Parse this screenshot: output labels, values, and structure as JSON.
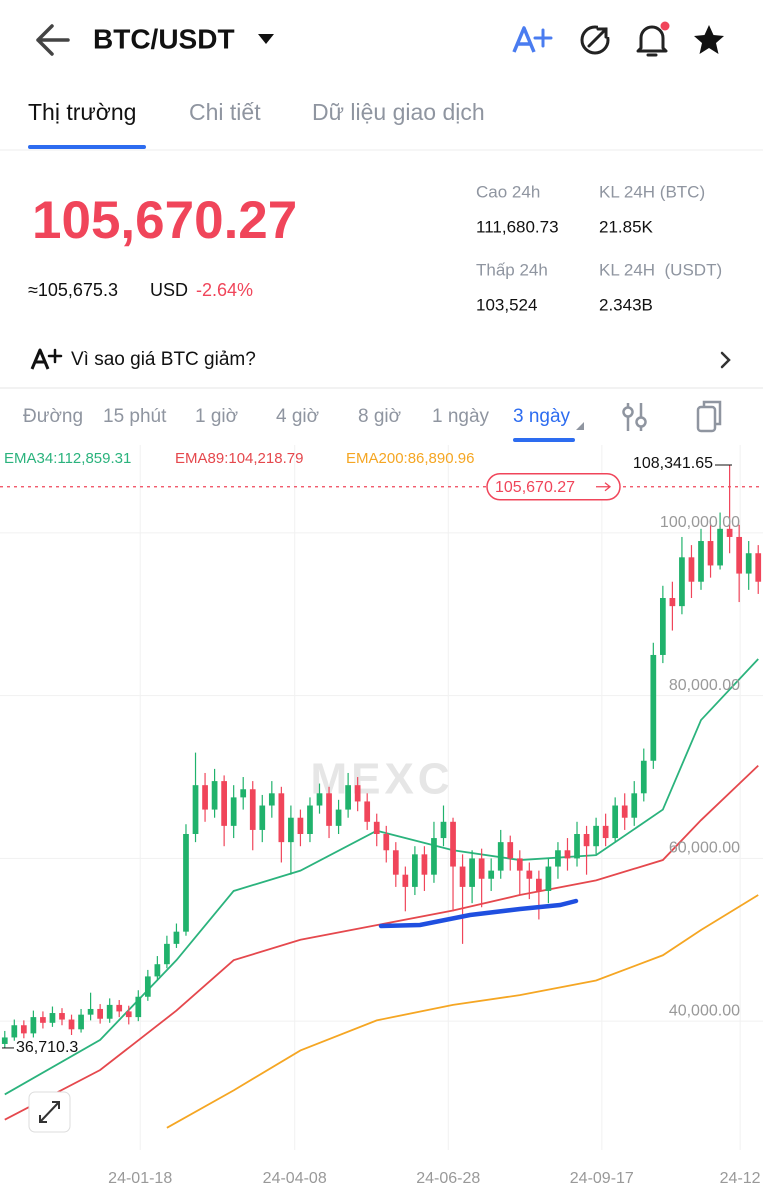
{
  "header": {
    "title": "BTC/USDT"
  },
  "tabs": [
    "Thị trường",
    "Chi tiết",
    "Dữ liệu giao dịch"
  ],
  "price": {
    "last": "105,670.27",
    "approx": "≈105,675.3",
    "currency": "USD",
    "change": "-2.64%"
  },
  "stats": [
    {
      "label": "Cao 24h",
      "value": "111,680.73"
    },
    {
      "label": "Thấp 24h",
      "value": "103,524"
    },
    {
      "label": "KL 24H (BTC)",
      "value": "21.85K"
    },
    {
      "label": "KL 24H  (USDT)",
      "value": "2.343B"
    }
  ],
  "banner": "Vì sao giá BTC giảm?",
  "timeframes": [
    "Đường",
    "15 phút",
    "1 giờ",
    "4 giờ",
    "8 giờ",
    "1 ngày",
    "3 ngày"
  ],
  "watermark": "MEXC",
  "chart_data": {
    "type": "candlestick",
    "up_color": "#20b26c",
    "down_color": "#f0455a",
    "xlim": [
      -0.5,
      79.5
    ],
    "xticks": [
      {
        "value": 14.2,
        "label": "24-01-18"
      },
      {
        "value": 30.4,
        "label": "24-04-08"
      },
      {
        "value": 46.5,
        "label": "24-06-28"
      },
      {
        "value": 62.6,
        "label": "24-09-17"
      },
      {
        "value": 77.1,
        "label": "24-12"
      }
    ],
    "ylim": [
      24170,
      110800
    ],
    "yticks": [
      {
        "value": 40000,
        "label": "40,000.00"
      },
      {
        "value": 60000,
        "label": "60,000.00"
      },
      {
        "value": 80000,
        "label": "80,000.00"
      },
      {
        "value": 100000,
        "label": "100,000.00"
      }
    ],
    "grid": true,
    "open": [
      37200,
      38000,
      39500,
      38500,
      40500,
      39800,
      41000,
      40200,
      39000,
      40800,
      41500,
      40300,
      42000,
      41200,
      40500,
      43000,
      45500,
      47000,
      49500,
      51000,
      63000,
      69000,
      66000,
      69500,
      64000,
      67500,
      68500,
      63500,
      66500,
      68000,
      62000,
      65000,
      63000,
      66500,
      68000,
      64000,
      66000,
      69000,
      67000,
      64500,
      63000,
      61000,
      58000,
      56500,
      60500,
      58000,
      62500,
      64500,
      59000,
      56500,
      60000,
      57500,
      58500,
      62000,
      60000,
      58500,
      57500,
      56000,
      59000,
      61000,
      60000,
      63000,
      61500,
      64000,
      62500,
      66500,
      65000,
      68000,
      72000,
      85000,
      92000,
      91000,
      97000,
      94000,
      99000,
      96000,
      100500,
      99500,
      95000,
      97500
    ],
    "high": [
      38800,
      40200,
      40100,
      41300,
      41200,
      41800,
      41600,
      40800,
      41500,
      43500,
      42100,
      42800,
      42600,
      41900,
      43800,
      46300,
      48000,
      50500,
      52000,
      64200,
      73000,
      70500,
      71000,
      70200,
      69000,
      70000,
      69500,
      67800,
      69500,
      68800,
      66500,
      66000,
      67500,
      69200,
      68800,
      67200,
      70500,
      70000,
      68000,
      65500,
      64000,
      62000,
      59000,
      61500,
      61500,
      64500,
      66500,
      65000,
      60500,
      61000,
      61200,
      60000,
      63500,
      62800,
      61000,
      59500,
      58500,
      60000,
      62000,
      62500,
      64500,
      64000,
      65000,
      65500,
      67500,
      68000,
      69500,
      73500,
      86500,
      93500,
      94000,
      99500,
      98500,
      100500,
      101000,
      102500,
      108341.65,
      101000,
      99000,
      98500
    ],
    "low": [
      36710.3,
      37600,
      37900,
      38000,
      39100,
      39300,
      39500,
      38300,
      38600,
      40100,
      39700,
      39800,
      40500,
      39600,
      40000,
      42500,
      45000,
      46500,
      49000,
      50500,
      62000,
      64500,
      65000,
      61500,
      62500,
      66000,
      61000,
      62000,
      65000,
      59500,
      58000,
      61500,
      62000,
      65500,
      62500,
      63000,
      65000,
      65800,
      63500,
      61500,
      59500,
      56500,
      53500,
      55500,
      56000,
      57000,
      61500,
      53500,
      49500,
      54500,
      54000,
      56000,
      57500,
      58500,
      55500,
      55000,
      52500,
      54500,
      57500,
      58500,
      59000,
      58000,
      60500,
      61500,
      62000,
      63500,
      64000,
      67000,
      71000,
      84000,
      88000,
      90000,
      92000,
      93000,
      94500,
      95500,
      97500,
      91500,
      93000,
      92500
    ],
    "close": [
      38000,
      39500,
      38500,
      40500,
      39800,
      41000,
      40200,
      39000,
      40800,
      41500,
      40300,
      42000,
      41200,
      40500,
      43000,
      45500,
      47000,
      49500,
      51000,
      63000,
      69000,
      66000,
      69500,
      64000,
      67500,
      68500,
      63500,
      66500,
      68000,
      62000,
      65000,
      63000,
      66500,
      68000,
      64000,
      66000,
      69000,
      67000,
      64500,
      63000,
      61000,
      58000,
      56500,
      60500,
      58000,
      62500,
      64500,
      59000,
      56500,
      60000,
      57500,
      58500,
      62000,
      60000,
      58500,
      57500,
      56000,
      59000,
      61000,
      60000,
      63000,
      61500,
      64000,
      62500,
      66500,
      65000,
      68000,
      72000,
      85000,
      92000,
      91000,
      97000,
      94000,
      99000,
      96000,
      100500,
      99500,
      95000,
      97500,
      94000
    ],
    "series": [
      {
        "name": "EMA34:112,859.31",
        "color": "#2bb37d",
        "x": [
          0,
          10,
          18,
          24,
          31,
          39,
          47,
          54,
          62,
          69,
          73,
          79
        ],
        "values": [
          31000,
          37700,
          47500,
          56000,
          58500,
          63400,
          61000,
          59800,
          60400,
          66000,
          77000,
          84500
        ]
      },
      {
        "name": "EMA89:104,218.79",
        "color": "#e5484d",
        "x": [
          0,
          10,
          18,
          24,
          31,
          39,
          47,
          54,
          62,
          69,
          73,
          79
        ],
        "values": [
          27900,
          34000,
          41300,
          47500,
          50000,
          51800,
          53600,
          55500,
          57300,
          59800,
          64700,
          71400
        ]
      },
      {
        "name": "EMA200:86,890.96",
        "color": "#f5a623",
        "x": [
          17,
          24,
          31,
          39,
          47,
          54,
          62,
          69,
          73,
          79
        ],
        "values": [
          26900,
          31500,
          36400,
          40100,
          42000,
          43200,
          45000,
          48100,
          51200,
          55500
        ]
      }
    ],
    "current_price": {
      "value": 105670.27,
      "label": "105,670.27"
    },
    "max_label": {
      "value": 108341.65,
      "label": "108,341.65"
    },
    "min_label": {
      "value": 36710.3,
      "label": "36,710.3"
    }
  }
}
